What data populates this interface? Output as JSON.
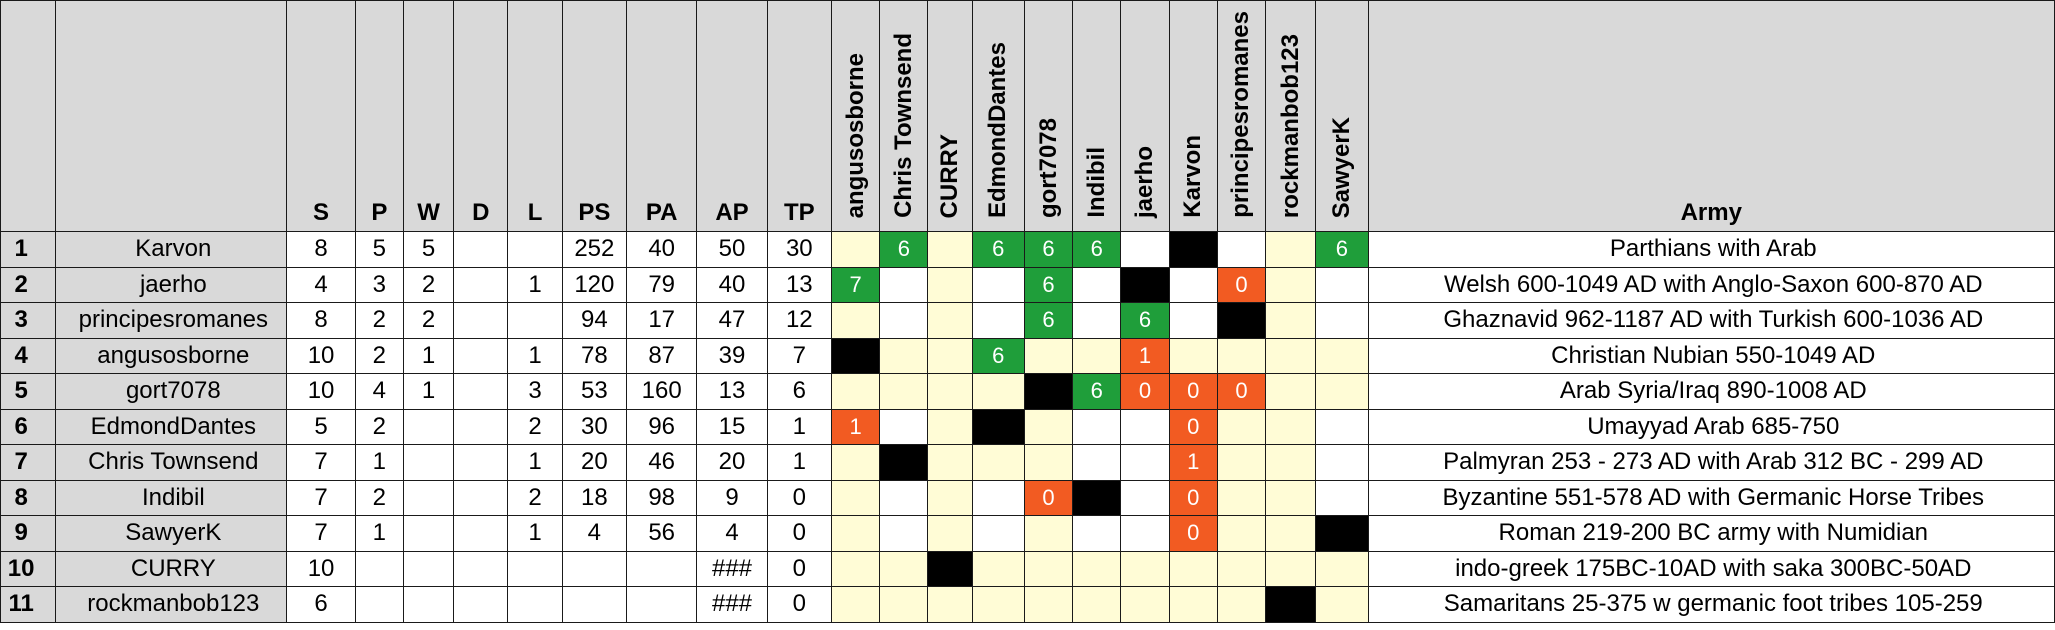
{
  "colors": {
    "header_bg": "#d9d9d9",
    "cream": "#fffcd6",
    "green": "#1f9e3a",
    "orange": "#f25b22",
    "black": "#000000",
    "white": "#ffffff"
  },
  "headers": {
    "stats": [
      "S",
      "P",
      "W",
      "D",
      "L",
      "PS",
      "PA",
      "AP",
      "TP"
    ],
    "opponents": [
      "angusosborne",
      "Chris Townsend",
      "CURRY",
      "EdmondDantes",
      "gort7078",
      "Indibil",
      "jaerho",
      "Karvon",
      "principesromanes",
      "rockmanbob123",
      "SawyerK"
    ],
    "army": "Army"
  },
  "rows": [
    {
      "rank": "1",
      "name": "Karvon",
      "stats": [
        "8",
        "5",
        "5",
        "",
        "",
        "252",
        "40",
        "50",
        "30"
      ],
      "matrix": [
        [
          "",
          "c"
        ],
        [
          "6",
          "g"
        ],
        [
          "",
          "c"
        ],
        [
          "6",
          "g"
        ],
        [
          "6",
          "g"
        ],
        [
          "6",
          "g"
        ],
        [
          "",
          "w"
        ],
        [
          "",
          "k"
        ],
        [
          "",
          "w"
        ],
        [
          "",
          "c"
        ],
        [
          "6",
          "g"
        ]
      ],
      "army": "Parthians with Arab"
    },
    {
      "rank": "2",
      "name": "jaerho",
      "stats": [
        "4",
        "3",
        "2",
        "",
        "1",
        "120",
        "79",
        "40",
        "13"
      ],
      "matrix": [
        [
          "7",
          "g"
        ],
        [
          "",
          "w"
        ],
        [
          "",
          "c"
        ],
        [
          "",
          "w"
        ],
        [
          "6",
          "g"
        ],
        [
          "",
          "w"
        ],
        [
          "",
          "k"
        ],
        [
          "",
          "w"
        ],
        [
          "0",
          "o"
        ],
        [
          "",
          "c"
        ],
        [
          "",
          "w"
        ]
      ],
      "army": "Welsh 600-1049 AD with Anglo-Saxon 600-870 AD"
    },
    {
      "rank": "3",
      "name": "principesromanes",
      "stats": [
        "8",
        "2",
        "2",
        "",
        "",
        "94",
        "17",
        "47",
        "12"
      ],
      "matrix": [
        [
          "",
          "c"
        ],
        [
          "",
          "w"
        ],
        [
          "",
          "c"
        ],
        [
          "",
          "w"
        ],
        [
          "6",
          "g"
        ],
        [
          "",
          "w"
        ],
        [
          "6",
          "g"
        ],
        [
          "",
          "w"
        ],
        [
          "",
          "k"
        ],
        [
          "",
          "c"
        ],
        [
          "",
          "w"
        ]
      ],
      "army": "Ghaznavid 962-1187 AD with Turkish 600-1036 AD"
    },
    {
      "rank": "4",
      "name": "angusosborne",
      "stats": [
        "10",
        "2",
        "1",
        "",
        "1",
        "78",
        "87",
        "39",
        "7"
      ],
      "matrix": [
        [
          "",
          "k"
        ],
        [
          "",
          "c"
        ],
        [
          "",
          "c"
        ],
        [
          "6",
          "g"
        ],
        [
          "",
          "c"
        ],
        [
          "",
          "c"
        ],
        [
          "1",
          "o"
        ],
        [
          "",
          "c"
        ],
        [
          "",
          "c"
        ],
        [
          "",
          "c"
        ],
        [
          "",
          "c"
        ]
      ],
      "army": "Christian Nubian 550-1049 AD"
    },
    {
      "rank": "5",
      "name": "gort7078",
      "stats": [
        "10",
        "4",
        "1",
        "",
        "3",
        "53",
        "160",
        "13",
        "6"
      ],
      "matrix": [
        [
          "",
          "c"
        ],
        [
          "",
          "c"
        ],
        [
          "",
          "c"
        ],
        [
          "",
          "c"
        ],
        [
          "",
          "k"
        ],
        [
          "6",
          "g"
        ],
        [
          "0",
          "o"
        ],
        [
          "0",
          "o"
        ],
        [
          "0",
          "o"
        ],
        [
          "",
          "c"
        ],
        [
          "",
          "c"
        ]
      ],
      "army": "Arab Syria/Iraq 890-1008 AD"
    },
    {
      "rank": "6",
      "name": "EdmondDantes",
      "stats": [
        "5",
        "2",
        "",
        "",
        "2",
        "30",
        "96",
        "15",
        "1"
      ],
      "matrix": [
        [
          "1",
          "o"
        ],
        [
          "",
          "w"
        ],
        [
          "",
          "c"
        ],
        [
          "",
          "k"
        ],
        [
          "",
          "c"
        ],
        [
          "",
          "w"
        ],
        [
          "",
          "w"
        ],
        [
          "0",
          "o"
        ],
        [
          "",
          "c"
        ],
        [
          "",
          "c"
        ],
        [
          "",
          "w"
        ]
      ],
      "army": "Umayyad Arab 685-750"
    },
    {
      "rank": "7",
      "name": "Chris Townsend",
      "stats": [
        "7",
        "1",
        "",
        "",
        "1",
        "20",
        "46",
        "20",
        "1"
      ],
      "matrix": [
        [
          "",
          "c"
        ],
        [
          "",
          "k"
        ],
        [
          "",
          "c"
        ],
        [
          "",
          "c"
        ],
        [
          "",
          "c"
        ],
        [
          "",
          "w"
        ],
        [
          "",
          "w"
        ],
        [
          "1",
          "o"
        ],
        [
          "",
          "c"
        ],
        [
          "",
          "c"
        ],
        [
          "",
          "w"
        ]
      ],
      "army": "Palmyran 253 - 273 AD with Arab 312 BC - 299 AD"
    },
    {
      "rank": "8",
      "name": "Indibil",
      "stats": [
        "7",
        "2",
        "",
        "",
        "2",
        "18",
        "98",
        "9",
        "0"
      ],
      "matrix": [
        [
          "",
          "c"
        ],
        [
          "",
          "w"
        ],
        [
          "",
          "c"
        ],
        [
          "",
          "w"
        ],
        [
          "0",
          "o"
        ],
        [
          "",
          "k"
        ],
        [
          "",
          "w"
        ],
        [
          "0",
          "o"
        ],
        [
          "",
          "c"
        ],
        [
          "",
          "c"
        ],
        [
          "",
          "w"
        ]
      ],
      "army": "Byzantine 551-578 AD with Germanic Horse Tribes"
    },
    {
      "rank": "9",
      "name": "SawyerK",
      "stats": [
        "7",
        "1",
        "",
        "",
        "1",
        "4",
        "56",
        "4",
        "0"
      ],
      "matrix": [
        [
          "",
          "c"
        ],
        [
          "",
          "w"
        ],
        [
          "",
          "c"
        ],
        [
          "",
          "w"
        ],
        [
          "",
          "c"
        ],
        [
          "",
          "w"
        ],
        [
          "",
          "w"
        ],
        [
          "0",
          "o"
        ],
        [
          "",
          "c"
        ],
        [
          "",
          "c"
        ],
        [
          "",
          "k"
        ]
      ],
      "army": "Roman 219-200 BC army with Numidian"
    },
    {
      "rank": "10",
      "name": "CURRY",
      "stats": [
        "10",
        "",
        "",
        "",
        "",
        "",
        "",
        "###",
        "0"
      ],
      "matrix": [
        [
          "",
          "c"
        ],
        [
          "",
          "c"
        ],
        [
          "",
          "k"
        ],
        [
          "",
          "c"
        ],
        [
          "",
          "c"
        ],
        [
          "",
          "c"
        ],
        [
          "",
          "c"
        ],
        [
          "",
          "c"
        ],
        [
          "",
          "c"
        ],
        [
          "",
          "c"
        ],
        [
          "",
          "c"
        ]
      ],
      "army": "indo-greek 175BC-10AD with saka 300BC-50AD"
    },
    {
      "rank": "11",
      "name": "rockmanbob123",
      "stats": [
        "6",
        "",
        "",
        "",
        "",
        "",
        "",
        "###",
        "0"
      ],
      "matrix": [
        [
          "",
          "c"
        ],
        [
          "",
          "c"
        ],
        [
          "",
          "c"
        ],
        [
          "",
          "c"
        ],
        [
          "",
          "c"
        ],
        [
          "",
          "c"
        ],
        [
          "",
          "c"
        ],
        [
          "",
          "c"
        ],
        [
          "",
          "c"
        ],
        [
          "",
          "k"
        ],
        [
          "",
          "c"
        ]
      ],
      "army": "Samaritans 25-375 w germanic foot tribes 105-259"
    }
  ]
}
